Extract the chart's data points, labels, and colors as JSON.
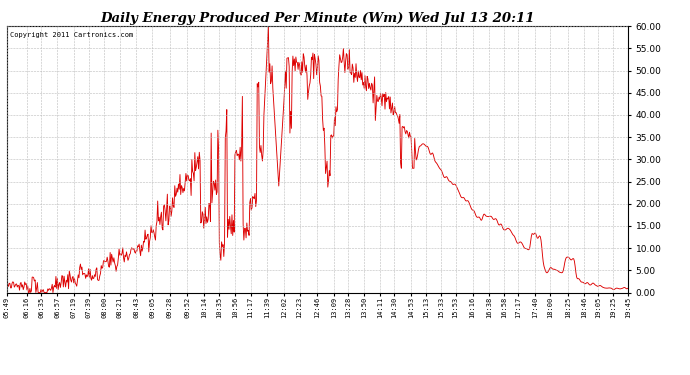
{
  "title": "Daily Energy Produced Per Minute (Wm) Wed Jul 13 20:11",
  "copyright": "Copyright 2011 Cartronics.com",
  "yticks": [
    0.0,
    5.0,
    10.0,
    15.0,
    20.0,
    25.0,
    30.0,
    35.0,
    40.0,
    45.0,
    50.0,
    55.0,
    60.0
  ],
  "ymin": 0.0,
  "ymax": 60.0,
  "line_color": "#dd0000",
  "background_color": "#ffffff",
  "grid_color": "#bbbbbb",
  "x_tick_labels": [
    "05:49",
    "06:16",
    "06:35",
    "06:57",
    "07:19",
    "07:39",
    "08:00",
    "08:21",
    "08:43",
    "09:05",
    "09:28",
    "09:52",
    "10:14",
    "10:35",
    "10:56",
    "11:17",
    "11:39",
    "12:02",
    "12:23",
    "12:46",
    "13:09",
    "13:28",
    "13:50",
    "14:11",
    "14:30",
    "14:53",
    "15:13",
    "15:33",
    "15:53",
    "16:16",
    "16:38",
    "16:58",
    "17:17",
    "17:40",
    "18:00",
    "18:25",
    "18:46",
    "19:05",
    "19:25",
    "19:45"
  ]
}
